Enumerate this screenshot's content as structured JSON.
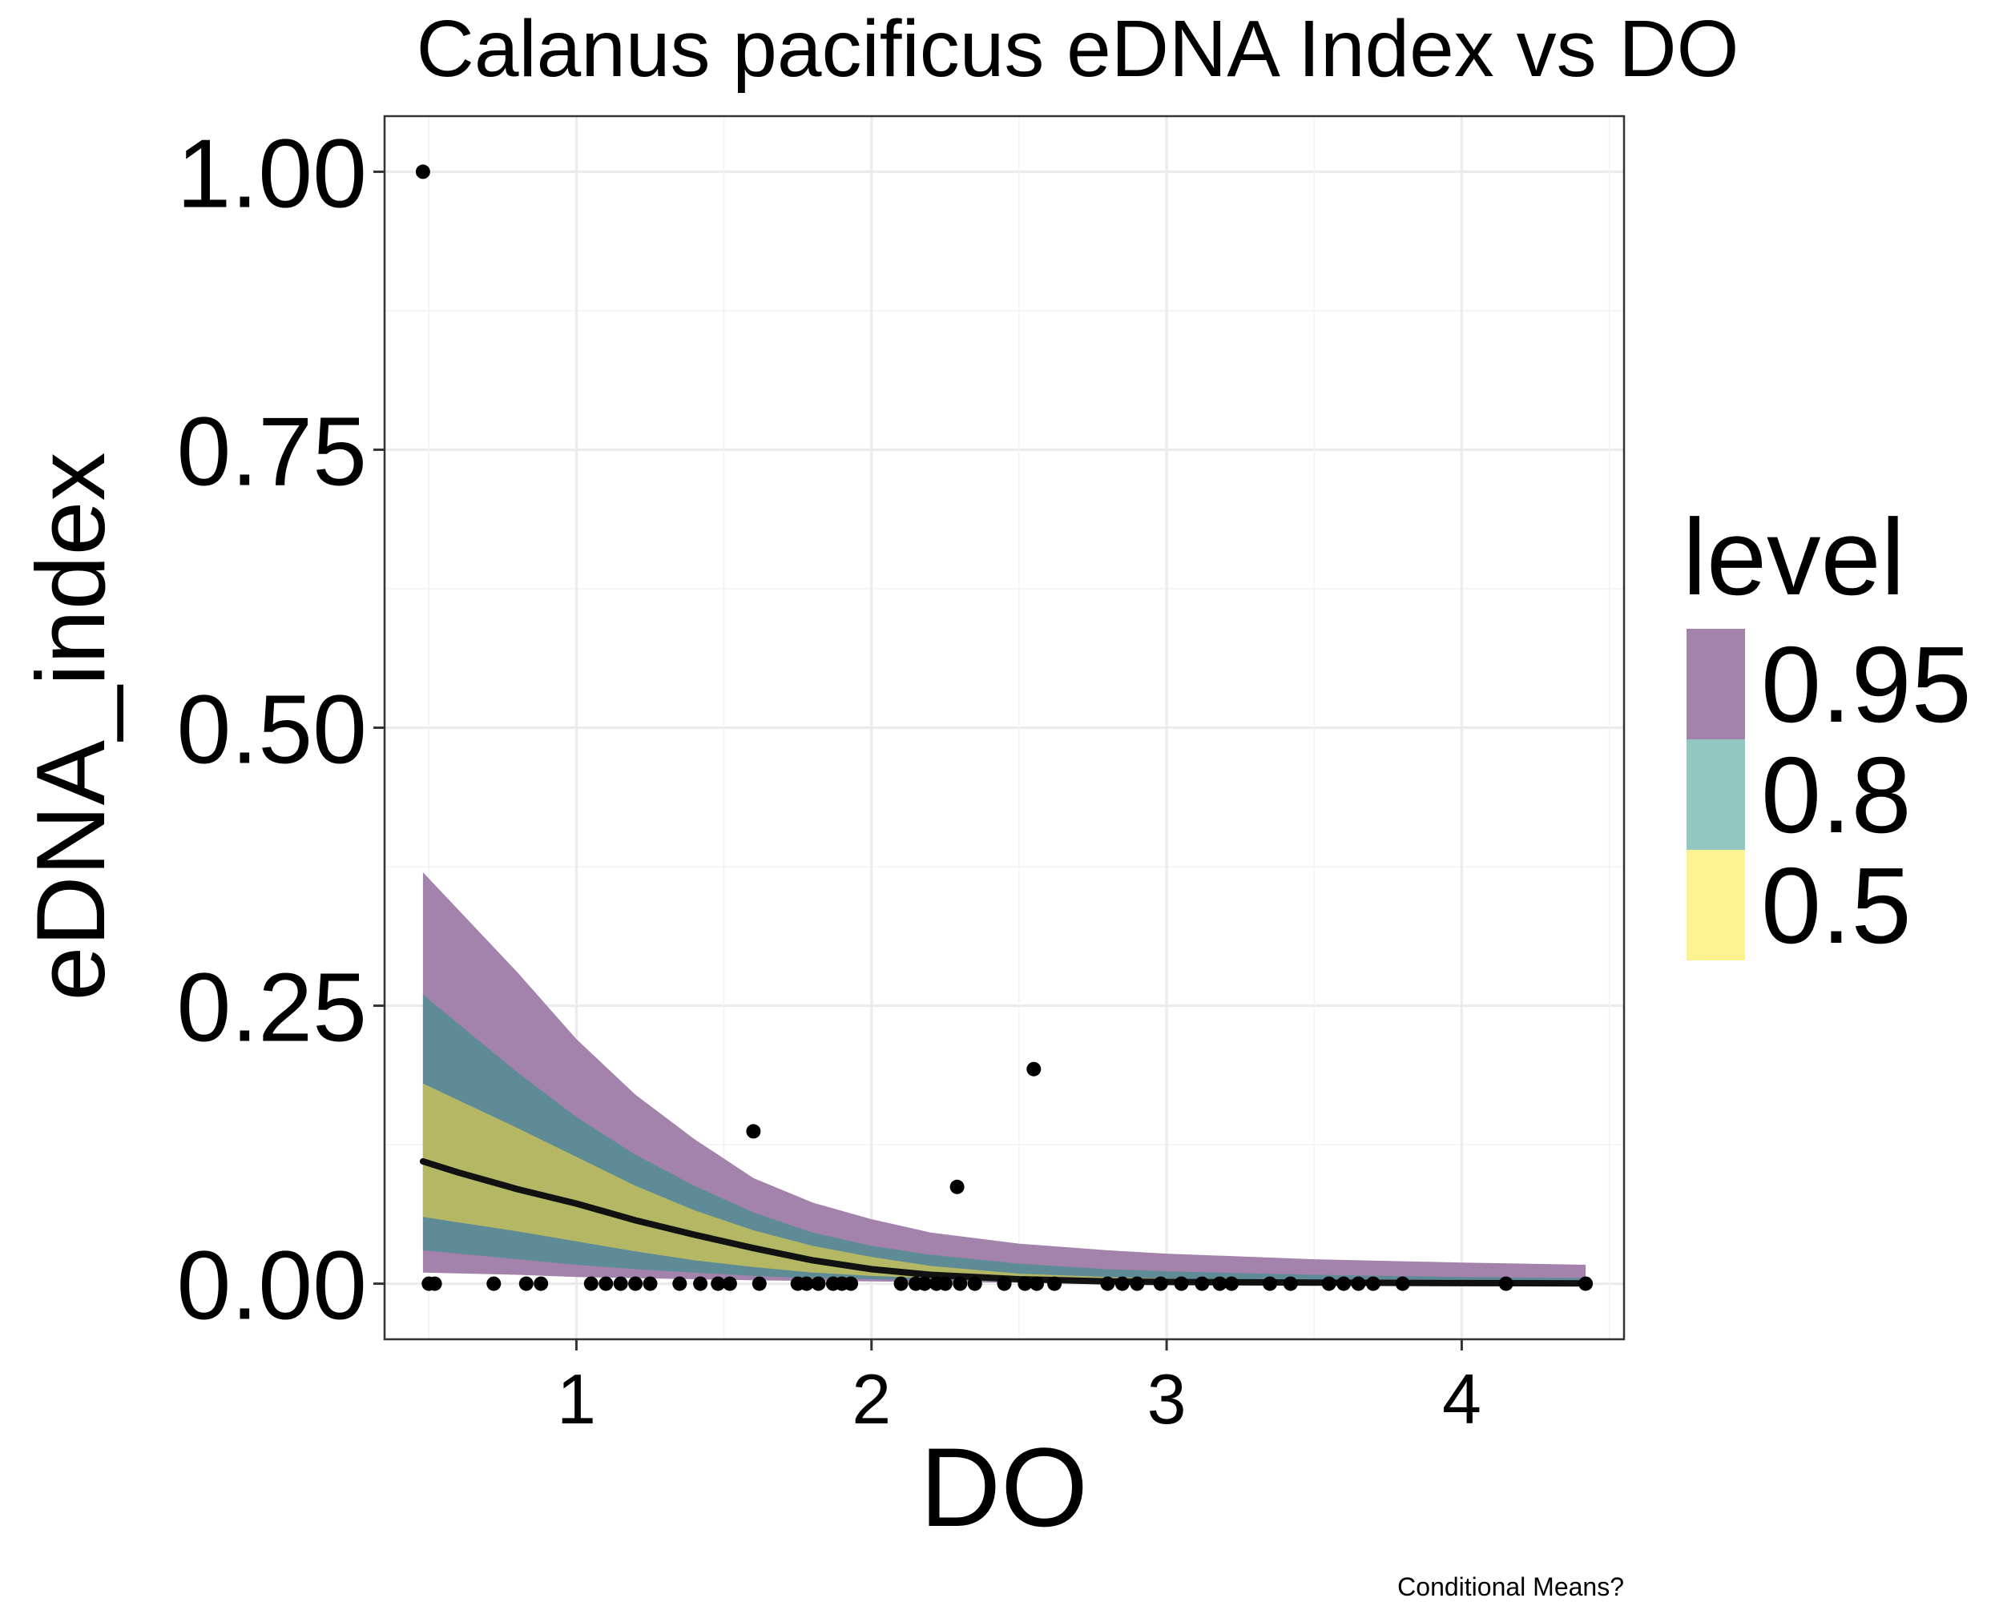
{
  "chart_data": {
    "type": "line",
    "title": "Calanus pacificus eDNA Index vs DO",
    "xlabel": "DO",
    "ylabel": "eDNA_index",
    "caption": "Conditional Means?",
    "xlim": [
      0.35,
      4.55
    ],
    "ylim": [
      -0.05,
      1.05
    ],
    "x_ticks": [
      1,
      2,
      3,
      4
    ],
    "x_tick_labels": [
      "1",
      "2",
      "3",
      "4"
    ],
    "y_ticks": [
      0,
      0.25,
      0.5,
      0.75,
      1
    ],
    "y_tick_labels": [
      "0.00",
      "0.25",
      "0.50",
      "0.75",
      "1.00"
    ],
    "grid": true,
    "legend": {
      "title": "level",
      "placement": "right",
      "entries": [
        {
          "label": "0.95",
          "color": "#a382ab"
        },
        {
          "label": "0.8",
          "color": "#93c8c2"
        },
        {
          "label": "0.5",
          "color": "#fcf290"
        }
      ]
    },
    "band_colors": {
      "0.95": "#a382ab",
      "0.8": "#5f8b97",
      "0.5": "#b4b864"
    },
    "fit_line": {
      "x": [
        0.48,
        0.6,
        0.8,
        1.0,
        1.2,
        1.4,
        1.6,
        1.8,
        2.0,
        2.2,
        2.5,
        2.8,
        3.0,
        3.5,
        4.0,
        4.42
      ],
      "y": [
        0.11,
        0.1,
        0.085,
        0.072,
        0.057,
        0.044,
        0.032,
        0.021,
        0.013,
        0.008,
        0.004,
        0.002,
        0.0015,
        0.001,
        0.0005,
        0.0003
      ]
    },
    "bands": [
      {
        "level": "0.95",
        "x": [
          0.48,
          0.8,
          1.0,
          1.2,
          1.4,
          1.6,
          1.8,
          2.0,
          2.2,
          2.5,
          2.8,
          3.0,
          3.5,
          4.0,
          4.42
        ],
        "lower": [
          0.01,
          0.008,
          0.006,
          0.005,
          0.004,
          0.003,
          0.0025,
          0.002,
          0.0015,
          0.001,
          0.0008,
          0.0006,
          0.0004,
          0.0003,
          0.0002
        ],
        "upper": [
          0.37,
          0.28,
          0.22,
          0.17,
          0.13,
          0.095,
          0.073,
          0.058,
          0.046,
          0.036,
          0.03,
          0.027,
          0.022,
          0.019,
          0.017
        ]
      },
      {
        "level": "0.8",
        "x": [
          0.48,
          0.8,
          1.0,
          1.2,
          1.4,
          1.6,
          1.8,
          2.0,
          2.2,
          2.5,
          2.8,
          3.0,
          3.5,
          4.0,
          4.42
        ],
        "lower": [
          0.03,
          0.022,
          0.017,
          0.013,
          0.01,
          0.007,
          0.005,
          0.004,
          0.003,
          0.002,
          0.0015,
          0.001,
          0.0008,
          0.0005,
          0.0004
        ],
        "upper": [
          0.26,
          0.19,
          0.15,
          0.116,
          0.088,
          0.064,
          0.046,
          0.034,
          0.026,
          0.018,
          0.013,
          0.011,
          0.008,
          0.006,
          0.005
        ]
      },
      {
        "level": "0.5",
        "x": [
          0.48,
          0.8,
          1.0,
          1.2,
          1.4,
          1.6,
          1.8,
          2.0,
          2.2,
          2.5,
          2.8,
          3.0,
          3.5,
          4.0,
          4.42
        ],
        "lower": [
          0.06,
          0.047,
          0.038,
          0.029,
          0.021,
          0.015,
          0.01,
          0.007,
          0.005,
          0.003,
          0.002,
          0.0015,
          0.001,
          0.0006,
          0.0004
        ],
        "upper": [
          0.18,
          0.14,
          0.114,
          0.088,
          0.066,
          0.048,
          0.034,
          0.024,
          0.016,
          0.009,
          0.006,
          0.0045,
          0.003,
          0.002,
          0.0015
        ]
      }
    ],
    "points": {
      "x": [
        0.48,
        0.5,
        0.52,
        0.72,
        0.83,
        0.88,
        1.05,
        1.1,
        1.15,
        1.2,
        1.25,
        1.35,
        1.42,
        1.48,
        1.52,
        1.62,
        1.6,
        1.75,
        1.78,
        1.82,
        1.87,
        1.9,
        1.93,
        2.1,
        2.15,
        2.18,
        2.22,
        2.25,
        2.29,
        2.35,
        2.3,
        2.45,
        2.52,
        2.55,
        2.56,
        2.62,
        2.8,
        2.85,
        2.9,
        2.98,
        3.05,
        3.12,
        3.18,
        3.22,
        3.35,
        3.42,
        3.55,
        3.6,
        3.65,
        3.7,
        3.8,
        4.15,
        4.42
      ],
      "y": [
        1.0,
        0,
        0,
        0,
        0,
        0,
        0,
        0,
        0,
        0,
        0,
        0,
        0,
        0,
        0,
        0,
        0.137,
        0,
        0,
        0,
        0,
        0,
        0,
        0,
        0,
        0,
        0,
        0,
        0.087,
        0,
        0,
        0,
        0,
        0.193,
        0,
        0,
        0,
        0,
        0,
        0,
        0,
        0,
        0,
        0,
        0,
        0,
        0,
        0,
        0,
        0,
        0,
        0,
        0
      ]
    }
  }
}
